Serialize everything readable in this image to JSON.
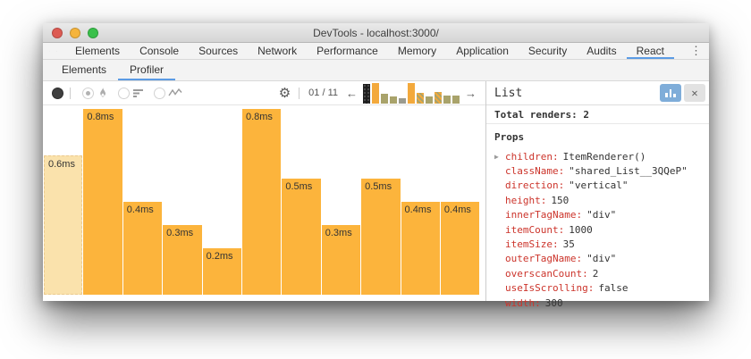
{
  "window": {
    "title": "DevTools - localhost:3000/"
  },
  "colors": {
    "accent_blue": "#5b9be4",
    "bar_orange": "#fcb43c",
    "bar_highlight": "#fae2ac",
    "prop_key_red": "#cc342b",
    "snapshot_orange": "#f3a93c",
    "snapshot_olive": "#a9a36b",
    "traffic_red": "#dd5b53",
    "traffic_yellow": "#f5b43c",
    "traffic_green": "#3ac04b",
    "chart_button_blue": "#7fadd9"
  },
  "tabbar": {
    "tabs": [
      {
        "label": "Elements",
        "active": false
      },
      {
        "label": "Console",
        "active": false
      },
      {
        "label": "Sources",
        "active": false
      },
      {
        "label": "Network",
        "active": false
      },
      {
        "label": "Performance",
        "active": false
      },
      {
        "label": "Memory",
        "active": false
      },
      {
        "label": "Application",
        "active": false
      },
      {
        "label": "Security",
        "active": false
      },
      {
        "label": "Audits",
        "active": false
      },
      {
        "label": "React",
        "active": true
      }
    ]
  },
  "subtabbar": {
    "tabs": [
      {
        "label": "Elements",
        "active": false
      },
      {
        "label": "Profiler",
        "active": true
      }
    ]
  },
  "profiler_toolbar": {
    "snapshot_counter": "01 / 11",
    "snapshot_bars": [
      {
        "style": "selected",
        "height": 22
      },
      {
        "style": "orange",
        "height": 23
      },
      {
        "style": "olive",
        "height": 11
      },
      {
        "style": "olive",
        "height": 8
      },
      {
        "style": "gray",
        "height": 6
      },
      {
        "style": "orange",
        "height": 23
      },
      {
        "style": "checker",
        "height": 12
      },
      {
        "style": "olive",
        "height": 8
      },
      {
        "style": "checker",
        "height": 13
      },
      {
        "style": "olive",
        "height": 9
      },
      {
        "style": "olive",
        "height": 9
      }
    ]
  },
  "icons": {
    "gear": "⚙",
    "arrow_left": "←",
    "arrow_right": "→",
    "overflow_menu": "⋮",
    "close": "✕",
    "expand_arrow": "▶"
  },
  "chart_data": {
    "type": "bar",
    "values": [
      0.6,
      0.8,
      0.4,
      0.3,
      0.2,
      0.8,
      0.5,
      0.3,
      0.5,
      0.4,
      0.4
    ],
    "labels": [
      "0.6ms",
      "0.8ms",
      "0.4ms",
      "0.3ms",
      "0.2ms",
      "0.8ms",
      "0.5ms",
      "0.3ms",
      "0.5ms",
      "0.4ms",
      "0.4ms"
    ],
    "unit": "ms",
    "ylim": [
      0,
      0.8
    ],
    "highlight_index": 0,
    "grid": false,
    "legend": "none"
  },
  "sidebar": {
    "title": "List",
    "total_renders": "Total renders: 2",
    "props": {
      "title": "Props",
      "items": [
        {
          "key": "children:",
          "value": "ItemRenderer()",
          "expandable": true
        },
        {
          "key": "className:",
          "value": "\"shared_List__3QQeP\""
        },
        {
          "key": "direction:",
          "value": "\"vertical\""
        },
        {
          "key": "height:",
          "value": "150"
        },
        {
          "key": "innerTagName:",
          "value": "\"div\""
        },
        {
          "key": "itemCount:",
          "value": "1000"
        },
        {
          "key": "itemSize:",
          "value": "35"
        },
        {
          "key": "outerTagName:",
          "value": "\"div\""
        },
        {
          "key": "overscanCount:",
          "value": "2"
        },
        {
          "key": "useIsScrolling:",
          "value": "false"
        },
        {
          "key": "width:",
          "value": "300"
        }
      ]
    }
  }
}
